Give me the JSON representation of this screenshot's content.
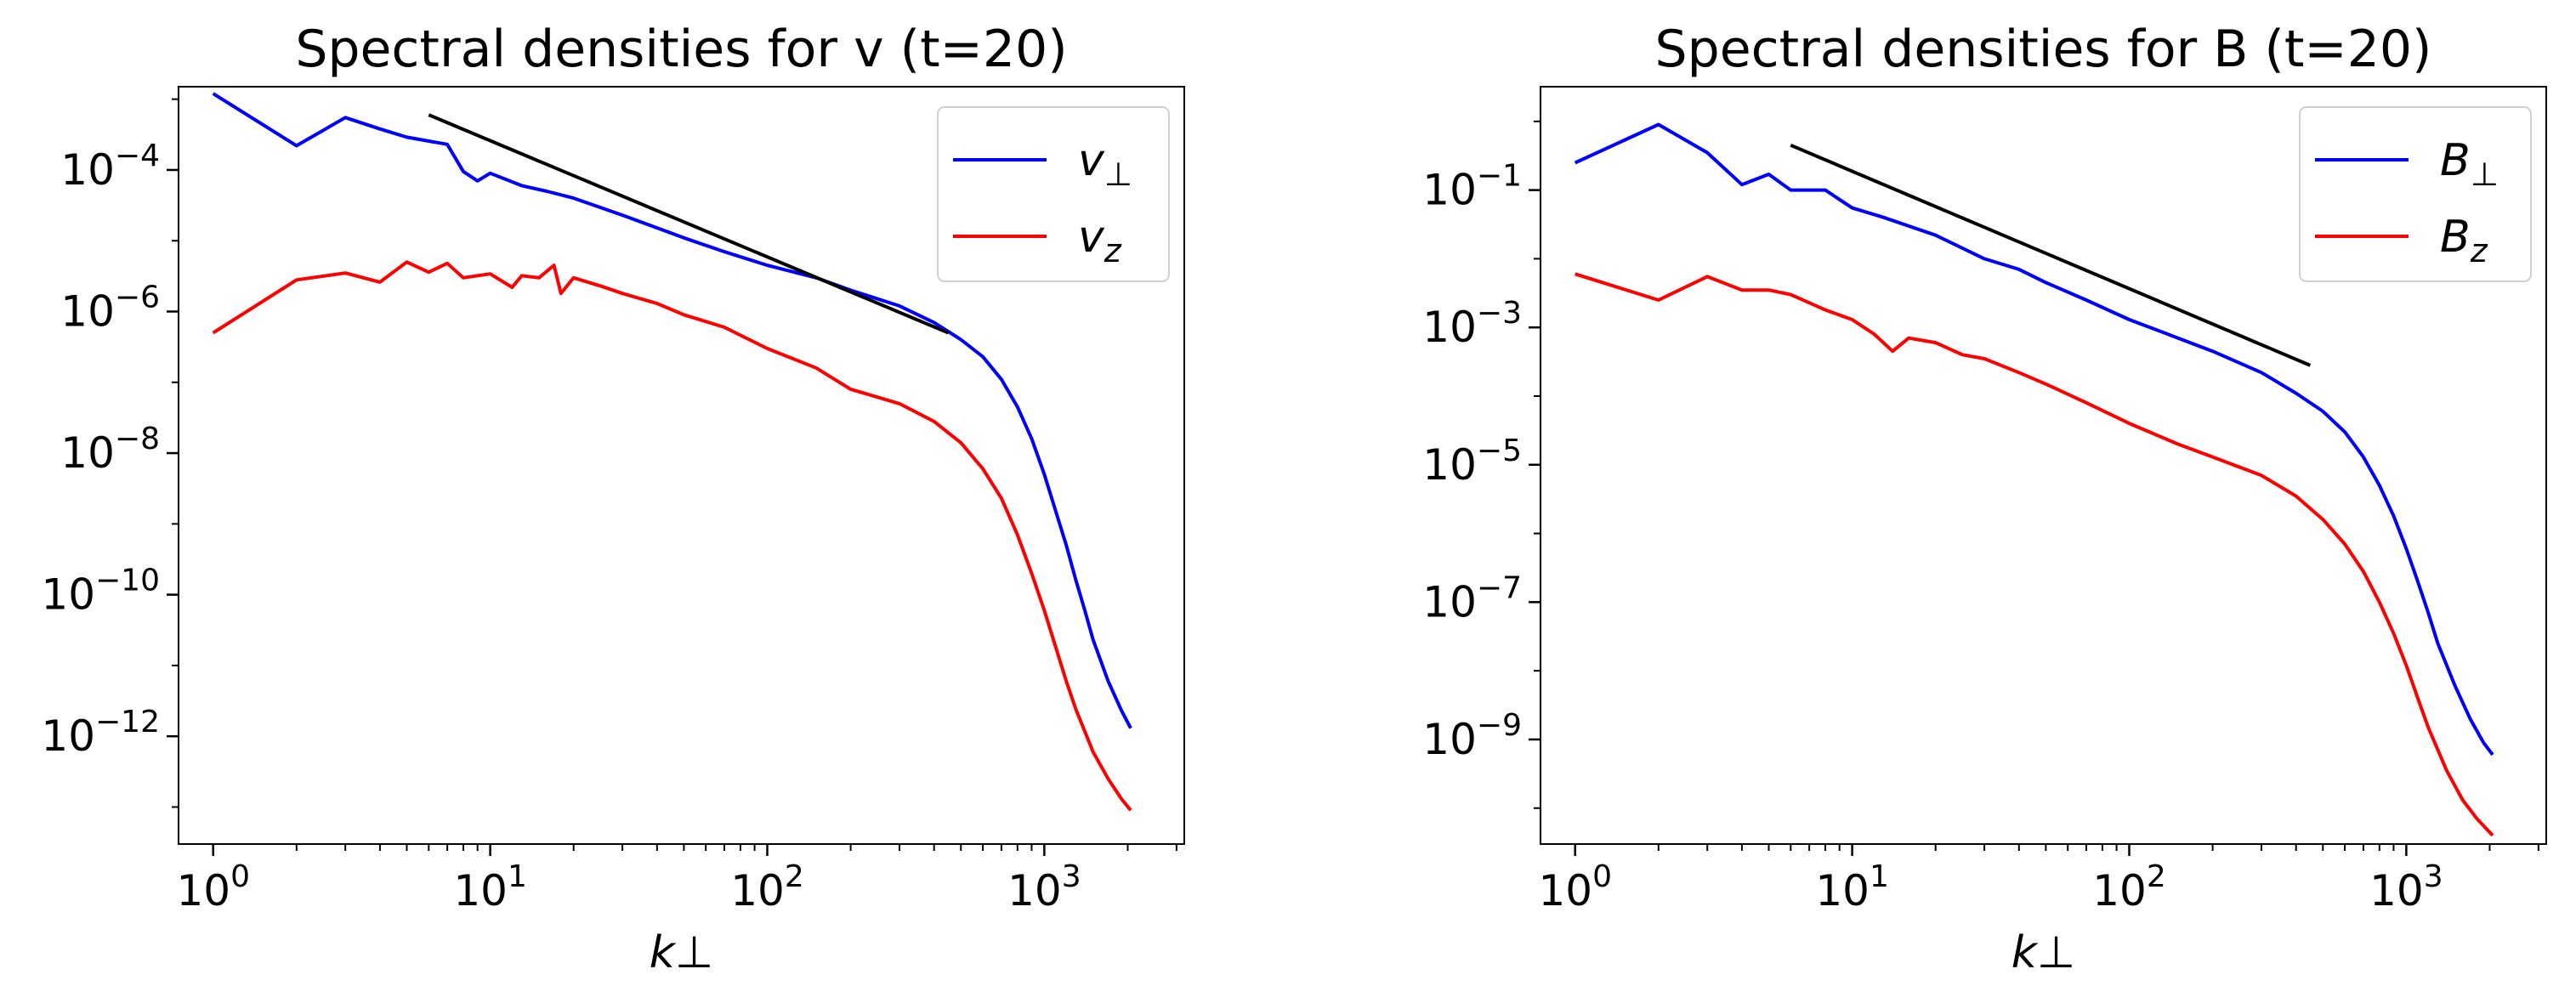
{
  "chart_data": [
    {
      "type": "line",
      "title": "Spectral densities for v (t=20)",
      "xlabel": "k⊥",
      "ylabel": "",
      "xscale": "log",
      "yscale": "log",
      "xlim": [
        0.75,
        3200
      ],
      "ylim": [
        3e-14,
        0.0015
      ],
      "xticks": [
        {
          "value": 1,
          "base": "10",
          "exp": "0"
        },
        {
          "value": 10,
          "base": "10",
          "exp": "1"
        },
        {
          "value": 100,
          "base": "10",
          "exp": "2"
        },
        {
          "value": 1000,
          "base": "10",
          "exp": "3"
        }
      ],
      "yticks": [
        {
          "value": 0.0001,
          "base": "10",
          "exp": "−4"
        },
        {
          "value": 1e-06,
          "base": "10",
          "exp": "−6"
        },
        {
          "value": 1e-08,
          "base": "10",
          "exp": "−8"
        },
        {
          "value": 1e-10,
          "base": "10",
          "exp": "−10"
        },
        {
          "value": 1e-12,
          "base": "10",
          "exp": "−12"
        }
      ],
      "legend_position": "top-right",
      "series": [
        {
          "name": "v⊥",
          "label_base": "v",
          "label_sub": "⊥",
          "color": "#0000ff",
          "points": [
            [
              1,
              0.0012
            ],
            [
              2,
              0.00022
            ],
            [
              3,
              0.00055
            ],
            [
              4,
              0.00038
            ],
            [
              5,
              0.00029
            ],
            [
              7,
              0.00023
            ],
            [
              8,
              9.5e-05
            ],
            [
              9,
              7e-05
            ],
            [
              10,
              9e-05
            ],
            [
              13,
              6e-05
            ],
            [
              16,
              5e-05
            ],
            [
              20,
              4e-05
            ],
            [
              30,
              2.3e-05
            ],
            [
              50,
              1.1e-05
            ],
            [
              70,
              7e-06
            ],
            [
              100,
              4.5e-06
            ],
            [
              150,
              3e-06
            ],
            [
              200,
              2e-06
            ],
            [
              300,
              1.2e-06
            ],
            [
              400,
              7e-07
            ],
            [
              500,
              4e-07
            ],
            [
              600,
              2.3e-07
            ],
            [
              700,
              1.1e-07
            ],
            [
              800,
              4.5e-08
            ],
            [
              900,
              1.6e-08
            ],
            [
              1000,
              5e-09
            ],
            [
              1100,
              1.5e-09
            ],
            [
              1200,
              5e-10
            ],
            [
              1300,
              1.6e-10
            ],
            [
              1400,
              6e-11
            ],
            [
              1500,
              2.3e-11
            ],
            [
              1700,
              6e-12
            ],
            [
              1900,
              2.3e-12
            ],
            [
              2050,
              1.3e-12
            ]
          ]
        },
        {
          "name": "vz",
          "label_base": "v",
          "label_sub": "z",
          "color": "#ff0000",
          "points": [
            [
              1,
              5e-07
            ],
            [
              2,
              2.8e-06
            ],
            [
              3,
              3.5e-06
            ],
            [
              4,
              2.6e-06
            ],
            [
              5,
              5e-06
            ],
            [
              6,
              3.6e-06
            ],
            [
              7,
              4.8e-06
            ],
            [
              8,
              3e-06
            ],
            [
              10,
              3.4e-06
            ],
            [
              12,
              2.2e-06
            ],
            [
              13,
              3.2e-06
            ],
            [
              15,
              3e-06
            ],
            [
              17,
              4.5e-06
            ],
            [
              18,
              1.8e-06
            ],
            [
              20,
              3e-06
            ],
            [
              25,
              2.3e-06
            ],
            [
              30,
              1.8e-06
            ],
            [
              40,
              1.3e-06
            ],
            [
              50,
              9e-07
            ],
            [
              70,
              6e-07
            ],
            [
              100,
              3e-07
            ],
            [
              150,
              1.6e-07
            ],
            [
              200,
              8e-08
            ],
            [
              300,
              5e-08
            ],
            [
              400,
              2.8e-08
            ],
            [
              500,
              1.4e-08
            ],
            [
              600,
              6e-09
            ],
            [
              700,
              2.3e-09
            ],
            [
              800,
              7e-10
            ],
            [
              900,
              2e-10
            ],
            [
              1000,
              6e-11
            ],
            [
              1100,
              1.8e-11
            ],
            [
              1200,
              6e-12
            ],
            [
              1300,
              2.4e-12
            ],
            [
              1500,
              6e-13
            ],
            [
              1700,
              2.5e-13
            ],
            [
              1900,
              1.3e-13
            ],
            [
              2050,
              9e-14
            ]
          ]
        }
      ],
      "reference_line": {
        "x": [
          6,
          450
        ],
        "y": [
          0.0006,
          5e-07
        ],
        "color": "#000000"
      }
    },
    {
      "type": "line",
      "title": "Spectral densities for B (t=20)",
      "xlabel": "k⊥",
      "ylabel": "",
      "xscale": "log",
      "yscale": "log",
      "xlim": [
        0.75,
        3200
      ],
      "ylim": [
        3e-11,
        3.2
      ],
      "xticks": [
        {
          "value": 1,
          "base": "10",
          "exp": "0"
        },
        {
          "value": 10,
          "base": "10",
          "exp": "1"
        },
        {
          "value": 100,
          "base": "10",
          "exp": "2"
        },
        {
          "value": 1000,
          "base": "10",
          "exp": "3"
        }
      ],
      "yticks": [
        {
          "value": 0.1,
          "base": "10",
          "exp": "−1"
        },
        {
          "value": 0.001,
          "base": "10",
          "exp": "−3"
        },
        {
          "value": 1e-05,
          "base": "10",
          "exp": "−5"
        },
        {
          "value": 1e-07,
          "base": "10",
          "exp": "−7"
        },
        {
          "value": 1e-09,
          "base": "10",
          "exp": "−9"
        }
      ],
      "legend_position": "top-right",
      "series": [
        {
          "name": "B⊥",
          "label_base": "B",
          "label_sub": "⊥",
          "color": "#0000ff",
          "points": [
            [
              1,
              0.25
            ],
            [
              2,
              0.9
            ],
            [
              3,
              0.35
            ],
            [
              4,
              0.12
            ],
            [
              5,
              0.17
            ],
            [
              6,
              0.1
            ],
            [
              8,
              0.1
            ],
            [
              10,
              0.055
            ],
            [
              13,
              0.04
            ],
            [
              16,
              0.03
            ],
            [
              20,
              0.022
            ],
            [
              30,
              0.01
            ],
            [
              40,
              0.007
            ],
            [
              50,
              0.0045
            ],
            [
              70,
              0.0025
            ],
            [
              100,
              0.0013
            ],
            [
              150,
              0.0007
            ],
            [
              200,
              0.00045
            ],
            [
              300,
              0.00022
            ],
            [
              400,
              0.00011
            ],
            [
              500,
              6e-05
            ],
            [
              600,
              3e-05
            ],
            [
              700,
              1.3e-05
            ],
            [
              800,
              5e-06
            ],
            [
              900,
              1.8e-06
            ],
            [
              1000,
              6e-07
            ],
            [
              1100,
              2e-07
            ],
            [
              1200,
              7e-08
            ],
            [
              1300,
              2.5e-08
            ],
            [
              1500,
              6e-09
            ],
            [
              1700,
              2e-09
            ],
            [
              1900,
              9e-10
            ],
            [
              2050,
              6e-10
            ]
          ]
        },
        {
          "name": "Bz",
          "label_base": "B",
          "label_sub": "z",
          "color": "#ff0000",
          "points": [
            [
              1,
              0.006
            ],
            [
              2,
              0.0025
            ],
            [
              3,
              0.0055
            ],
            [
              4,
              0.0035
            ],
            [
              5,
              0.0035
            ],
            [
              6,
              0.003
            ],
            [
              8,
              0.0018
            ],
            [
              10,
              0.0013
            ],
            [
              12,
              0.0008
            ],
            [
              14,
              0.00045
            ],
            [
              16,
              0.0007
            ],
            [
              20,
              0.0006
            ],
            [
              25,
              0.0004
            ],
            [
              30,
              0.00035
            ],
            [
              40,
              0.00022
            ],
            [
              50,
              0.00015
            ],
            [
              70,
              8e-05
            ],
            [
              100,
              4e-05
            ],
            [
              150,
              2e-05
            ],
            [
              200,
              1.3e-05
            ],
            [
              300,
              7e-06
            ],
            [
              400,
              3.5e-06
            ],
            [
              500,
              1.6e-06
            ],
            [
              600,
              7e-07
            ],
            [
              700,
              2.8e-07
            ],
            [
              800,
              1e-07
            ],
            [
              900,
              3.5e-08
            ],
            [
              1000,
              1.2e-08
            ],
            [
              1100,
              4e-09
            ],
            [
              1200,
              1.5e-09
            ],
            [
              1400,
              3.5e-10
            ],
            [
              1600,
              1.3e-10
            ],
            [
              1800,
              7e-11
            ],
            [
              2050,
              4e-11
            ]
          ]
        }
      ],
      "reference_line": {
        "x": [
          6,
          450
        ],
        "y": [
          0.45,
          0.00028
        ],
        "color": "#000000"
      }
    }
  ]
}
